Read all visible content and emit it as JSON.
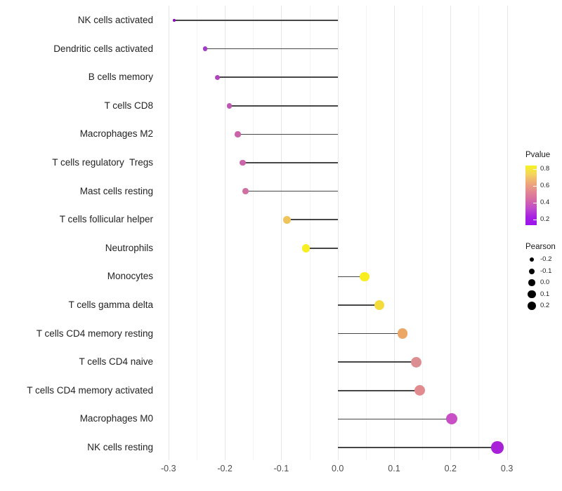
{
  "chart_data": {
    "type": "lollipop",
    "title": "",
    "xlabel": "",
    "ylabel": "",
    "grid": "vertical major and minor gridlines, no horizontal grid, white background",
    "xlim": [
      -0.31,
      0.33
    ],
    "x_ticks": [
      -0.3,
      -0.2,
      -0.1,
      0.0,
      0.1,
      0.2,
      0.3
    ],
    "x_tick_labels": [
      "-0.3",
      "-0.2",
      "-0.1",
      "0.0",
      "0.1",
      "0.2",
      "0.3"
    ],
    "x_minor_ticks": [
      -0.25,
      -0.15,
      -0.05,
      0.05,
      0.15,
      0.25
    ],
    "stem_color": "#464646",
    "points": [
      {
        "label": "NK cells activated",
        "pearson": -0.29,
        "pvalue": 0.15,
        "color": "#8d0fb6"
      },
      {
        "label": "Dendritic cells activated",
        "pearson": -0.235,
        "pvalue": 0.27,
        "color": "#a53ac9"
      },
      {
        "label": "B cells memory",
        "pearson": -0.213,
        "pvalue": 0.31,
        "color": "#b044bf"
      },
      {
        "label": "T cells CD8",
        "pearson": -0.192,
        "pvalue": 0.37,
        "color": "#c156b3"
      },
      {
        "label": "Macrophages M2",
        "pearson": -0.177,
        "pvalue": 0.4,
        "color": "#ca62a9"
      },
      {
        "label": "T cells regulatory  Tregs",
        "pearson": -0.168,
        "pvalue": 0.41,
        "color": "#cb64a8"
      },
      {
        "label": "Mast cells resting",
        "pearson": -0.163,
        "pvalue": 0.44,
        "color": "#d06fa2"
      },
      {
        "label": "T cells follicular helper",
        "pearson": -0.09,
        "pvalue": 0.67,
        "color": "#eec45c"
      },
      {
        "label": "Neutrophils",
        "pearson": -0.056,
        "pvalue": 0.83,
        "color": "#f7ee24"
      },
      {
        "label": "Monocytes",
        "pearson": 0.048,
        "pvalue": 0.84,
        "color": "#f8ee1e"
      },
      {
        "label": "T cells gamma delta",
        "pearson": 0.074,
        "pvalue": 0.76,
        "color": "#f5dc3d"
      },
      {
        "label": "T cells CD4 memory resting",
        "pearson": 0.115,
        "pvalue": 0.62,
        "color": "#eba765"
      },
      {
        "label": "T cells CD4 naive",
        "pearson": 0.139,
        "pvalue": 0.53,
        "color": "#dc8f92"
      },
      {
        "label": "T cells CD4 memory activated",
        "pearson": 0.145,
        "pvalue": 0.52,
        "color": "#e18b8f"
      },
      {
        "label": "Macrophages M0",
        "pearson": 0.202,
        "pvalue": 0.33,
        "color": "#c94fc7"
      },
      {
        "label": "NK cells resting",
        "pearson": 0.283,
        "pvalue": 0.18,
        "color": "#a821d8"
      }
    ],
    "legend": {
      "pvalue": {
        "title": "Pvalue",
        "range": [
          0.137,
          0.845
        ],
        "tick_values": [
          0.8,
          0.6,
          0.4,
          0.2
        ],
        "tick_labels": [
          "0.8",
          "0.6",
          "0.4",
          "0.2"
        ],
        "gradient_top_to_bottom": [
          "#f8f225",
          "#f4d55c",
          "#eeab77",
          "#e38a90",
          "#d76ba6",
          "#c04cc9",
          "#a722e2",
          "#9b13ec"
        ]
      },
      "pearson": {
        "title": "Pearson",
        "tick_labels": [
          "-0.2",
          "-0.1",
          "0.0",
          "0.1",
          "0.2"
        ]
      }
    }
  }
}
